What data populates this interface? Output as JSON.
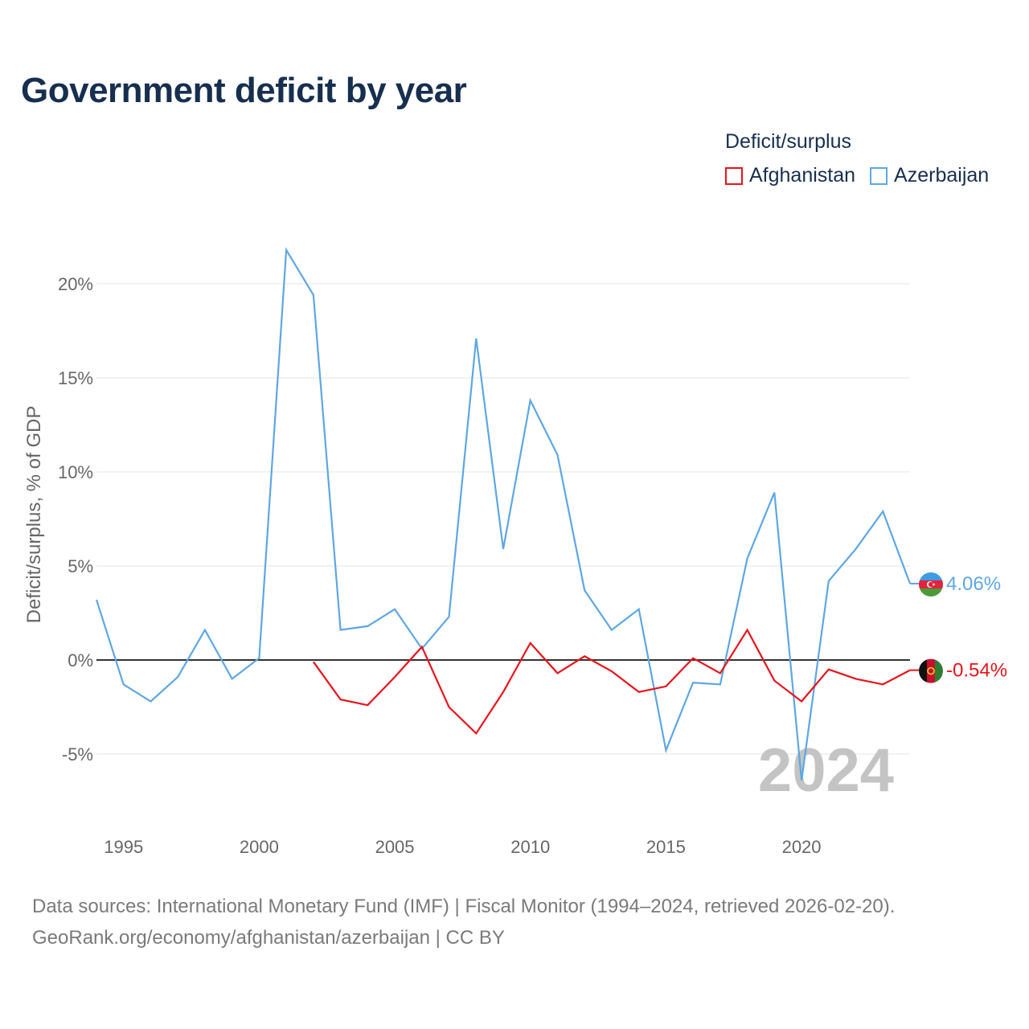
{
  "title": "Government deficit by year",
  "legend": {
    "title": "Deficit/surplus",
    "items": [
      {
        "label": "Afghanistan",
        "color": "#e8141b"
      },
      {
        "label": "Azerbaijan",
        "color": "#5ea7e3"
      }
    ]
  },
  "source": {
    "line1": "Data sources: International Monetary Fund (IMF) | Fiscal Monitor (1994–2024, retrieved 2026-02-20).",
    "line2": "GeoRank.org/economy/afghanistan/azerbaijan | CC BY"
  },
  "chart_data": {
    "type": "line",
    "title": "Government deficit by year",
    "xlabel": "",
    "ylabel": "Deficit/surplus, % of GDP",
    "xlim": [
      1994,
      2024
    ],
    "ylim": [
      -8.2,
      24
    ],
    "x_ticks": [
      1995,
      2000,
      2005,
      2010,
      2015,
      2020
    ],
    "y_ticks": [
      20,
      15,
      10,
      5,
      0,
      -5
    ],
    "y_tick_labels": [
      "20%",
      "15%",
      "10%",
      "5%",
      "0%",
      "-5%"
    ],
    "current_year": "2024",
    "series": [
      {
        "name": "Azerbaijan",
        "color": "#5ea7e3",
        "end_label": "4.06%",
        "flag": "azerbaijan-flag",
        "x": [
          1994,
          1995,
          1996,
          1997,
          1998,
          1999,
          2000,
          2001,
          2002,
          2003,
          2004,
          2005,
          2006,
          2007,
          2008,
          2009,
          2010,
          2011,
          2012,
          2013,
          2014,
          2015,
          2016,
          2017,
          2018,
          2019,
          2020,
          2021,
          2022,
          2023,
          2024
        ],
        "values": [
          3.2,
          -1.3,
          -2.2,
          -0.9,
          1.6,
          -1.0,
          0.1,
          21.8,
          19.4,
          1.6,
          1.8,
          2.7,
          0.6,
          2.3,
          17.1,
          5.9,
          13.8,
          10.9,
          3.7,
          1.6,
          2.7,
          -4.8,
          -1.2,
          -1.3,
          5.4,
          8.9,
          -6.4,
          4.2,
          5.9,
          7.9,
          4.06
        ]
      },
      {
        "name": "Afghanistan",
        "color": "#e8141b",
        "end_label": "-0.54%",
        "flag": "afghanistan-flag",
        "x": [
          2002,
          2003,
          2004,
          2005,
          2006,
          2007,
          2008,
          2009,
          2010,
          2011,
          2012,
          2013,
          2014,
          2015,
          2016,
          2017,
          2018,
          2019,
          2020,
          2021,
          2022,
          2023,
          2024
        ],
        "values": [
          -0.1,
          -2.1,
          -2.4,
          -0.9,
          0.7,
          -2.5,
          -3.9,
          -1.7,
          0.9,
          -0.7,
          0.2,
          -0.6,
          -1.7,
          -1.4,
          0.1,
          -0.7,
          1.6,
          -1.1,
          -2.2,
          -0.5,
          -1.0,
          -1.3,
          -0.54
        ]
      }
    ]
  }
}
